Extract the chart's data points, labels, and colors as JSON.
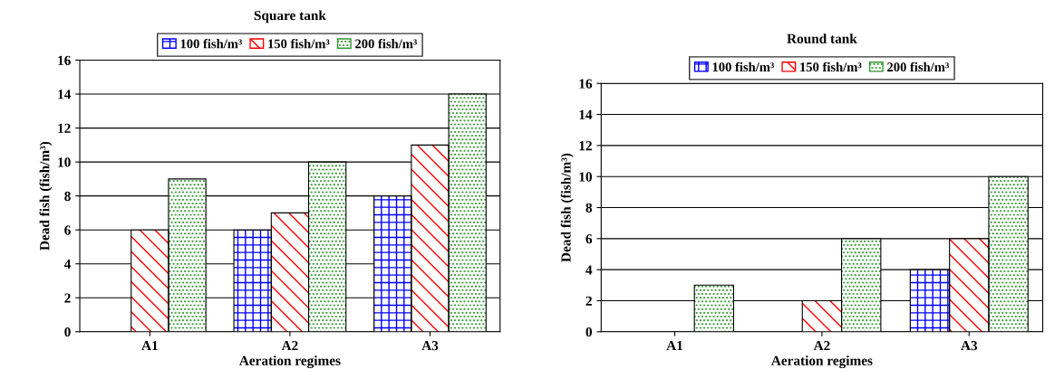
{
  "chart_data": [
    {
      "type": "bar",
      "title": "Square tank",
      "xlabel": "Aeration regimes",
      "ylabel": "Dead fish (fish/m³)",
      "categories": [
        "A1",
        "A2",
        "A3"
      ],
      "series": [
        {
          "name": "100 fish/m³",
          "color": "#0000ff",
          "values": [
            0,
            6,
            8
          ]
        },
        {
          "name": "150 fish/m³",
          "color": "#ff0000",
          "values": [
            6,
            7,
            11
          ]
        },
        {
          "name": "200 fish/m³",
          "color": "#339933",
          "values": [
            9,
            10,
            14
          ]
        }
      ],
      "ylim": [
        0,
        16
      ],
      "yticks": [
        0,
        2,
        4,
        6,
        8,
        10,
        12,
        14,
        16
      ],
      "grid": "y",
      "legend": "top"
    },
    {
      "type": "bar",
      "title": "Round tank",
      "xlabel": "Aeration regimes",
      "ylabel": "Dead fish (fish/m³)",
      "categories": [
        "A1",
        "A2",
        "A3"
      ],
      "series": [
        {
          "name": "100 fish/m³",
          "color": "#0000ff",
          "values": [
            0,
            0,
            4
          ]
        },
        {
          "name": "150 fish/m³",
          "color": "#ff0000",
          "values": [
            0,
            2,
            6
          ]
        },
        {
          "name": "200 fish/m³",
          "color": "#339933",
          "values": [
            3,
            6,
            10
          ]
        }
      ],
      "ylim": [
        0,
        16
      ],
      "yticks": [
        0,
        2,
        4,
        6,
        8,
        10,
        12,
        14,
        16
      ],
      "grid": "y",
      "legend": "top"
    }
  ]
}
